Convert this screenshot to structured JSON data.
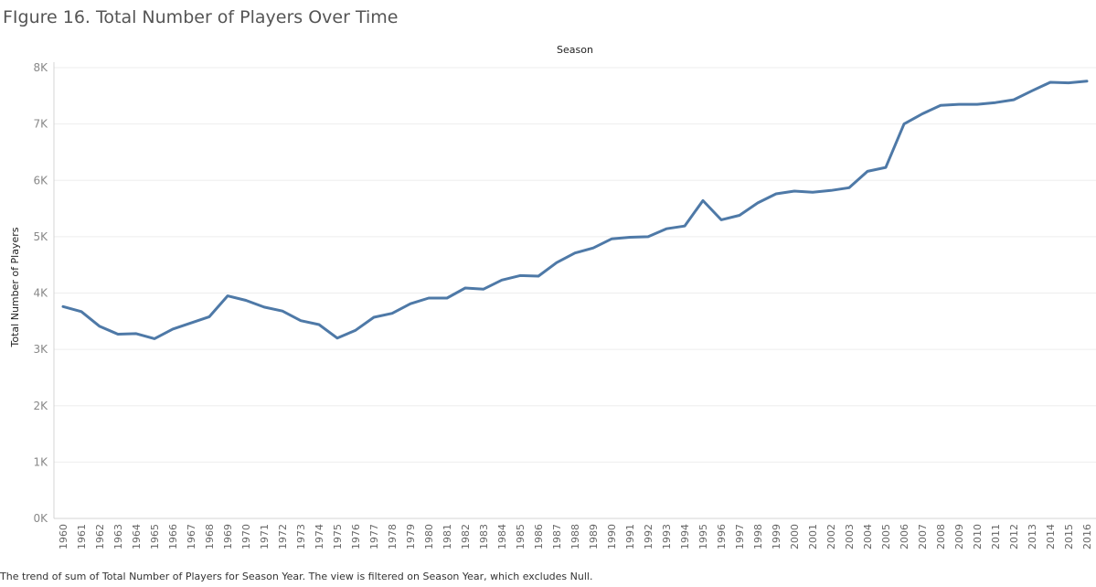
{
  "chart_data": {
    "type": "line",
    "title": "FIgure 16. Total Number of Players Over Time",
    "column_header": "Season",
    "ylabel": "Total Number of Players",
    "xlabel": "",
    "ylim": [
      0,
      8000
    ],
    "yticks": [
      0,
      1000,
      2000,
      3000,
      4000,
      5000,
      6000,
      7000,
      8000
    ],
    "ytick_labels": [
      "0K",
      "1K",
      "2K",
      "3K",
      "4K",
      "5K",
      "6K",
      "7K",
      "8K"
    ],
    "grid": true,
    "line_color": "#4e79a7",
    "categories": [
      "1960",
      "1961",
      "1962",
      "1963",
      "1964",
      "1965",
      "1966",
      "1967",
      "1968",
      "1969",
      "1970",
      "1971",
      "1972",
      "1973",
      "1974",
      "1975",
      "1976",
      "1977",
      "1978",
      "1979",
      "1980",
      "1981",
      "1982",
      "1983",
      "1984",
      "1985",
      "1986",
      "1987",
      "1988",
      "1989",
      "1990",
      "1991",
      "1992",
      "1993",
      "1994",
      "1995",
      "1996",
      "1997",
      "1998",
      "1999",
      "2000",
      "2001",
      "2002",
      "2003",
      "2004",
      "2005",
      "2006",
      "2007",
      "2008",
      "2009",
      "2010",
      "2011",
      "2012",
      "2013",
      "2014",
      "2015",
      "2016"
    ],
    "values": [
      3760,
      3670,
      3410,
      3270,
      3280,
      3190,
      3360,
      3470,
      3580,
      3950,
      3870,
      3750,
      3680,
      3510,
      3440,
      3200,
      3340,
      3570,
      3640,
      3810,
      3910,
      3910,
      4090,
      4070,
      4230,
      4310,
      4300,
      4540,
      4710,
      4800,
      4960,
      4990,
      5000,
      5140,
      5190,
      5640,
      5300,
      5380,
      5600,
      5760,
      5810,
      5790,
      5820,
      5870,
      6160,
      6230,
      7000,
      7180,
      7330,
      7350,
      7350,
      7380,
      7430,
      7590,
      7740,
      7730,
      7760
    ]
  },
  "footer": {
    "caption": "The trend of sum of Total Number of Players for Season Year. The view is filtered on Season Year, which excludes Null."
  }
}
